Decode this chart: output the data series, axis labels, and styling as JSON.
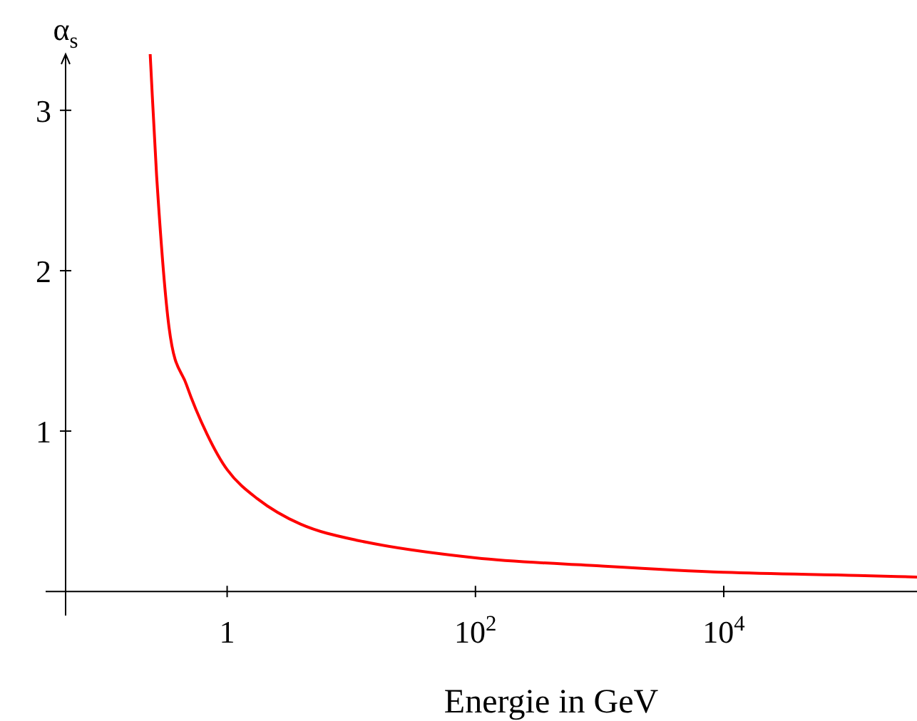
{
  "chart_data": {
    "type": "line",
    "xlabel": "Energie in GeV",
    "ylabel": "α$_{s}$",
    "log": "x",
    "x": [
      0.24,
      0.27,
      0.34,
      0.47,
      0.69,
      1,
      1.74,
      3.9,
      11,
      100,
      1000,
      10000,
      120000,
      360000
    ],
    "series": [
      {
        "color": "#ff0000",
        "values": [
          3.35,
          2.6,
          1.65,
          1.29,
          0.98,
          0.76,
          0.58,
          0.42,
          0.32,
          0.21,
          0.16,
          0.12,
          0.1,
          0.09
        ]
      }
    ],
    "xlim": [
      0.05,
      360000
    ],
    "ylim": [
      -0.15,
      3.35
    ],
    "xticks": [
      1,
      {
        "value": 100,
        "label": "10$^{2}$"
      },
      {
        "value": 10000,
        "label": "10$^{4}$"
      }
    ],
    "yticks": [
      1,
      2,
      3
    ],
    "grid": false,
    "legend": false,
    "marker": "none",
    "line_style": "solid"
  }
}
